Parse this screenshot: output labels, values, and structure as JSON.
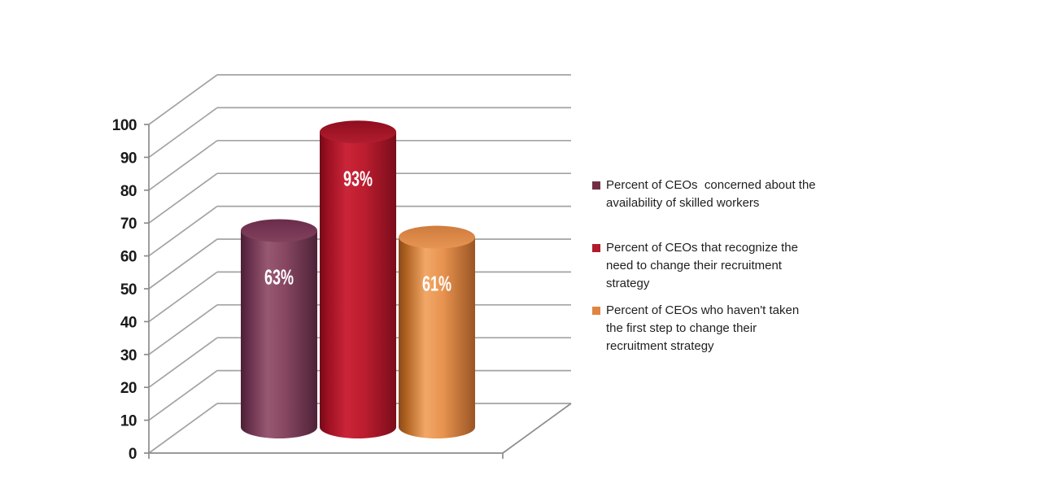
{
  "chart_data": {
    "type": "bar",
    "subtype": "3d-cylinder",
    "title": "",
    "xlabel": "",
    "ylabel": "",
    "categories": [
      ""
    ],
    "ylim": [
      0,
      100
    ],
    "ytick_step": 10,
    "yticks": [
      0,
      10,
      20,
      30,
      40,
      50,
      60,
      70,
      80,
      90,
      100
    ],
    "grid": true,
    "legend_position": "right",
    "colors": {
      "grid": "#A3A3A3",
      "axis": "#8C8C8C",
      "tick_label": "#1A1A1A",
      "data_label": "#FFFFFF",
      "background": "#FFFFFF"
    },
    "series": [
      {
        "name": "Percent of CEOs  concerned about the\navailability of skilled workers",
        "value": 63,
        "data_label": "63%",
        "colors": {
          "darkest": "#4A1F33",
          "dark": "#652E4A",
          "light": "#975871",
          "main": "#874761",
          "edge": "#4E2238",
          "top_dark": "#6A2C4B",
          "top_light": "#82415D",
          "legend": "#722F44"
        }
      },
      {
        "name": "Percent of CEOs that recognize the\nneed to change their recruitment\nstrategy",
        "value": 93,
        "data_label": "93%",
        "colors": {
          "darkest": "#720A18",
          "dark": "#9A1021",
          "light": "#CB2538",
          "main": "#BC1D2F",
          "edge": "#7A0D1B",
          "top_dark": "#8E0E1F",
          "top_light": "#B21D2F",
          "legend": "#B01C2B"
        }
      },
      {
        "name": "Percent of CEOs who haven't taken\nthe first step to change their\nrecruitment strategy",
        "value": 61,
        "data_label": "61%",
        "colors": {
          "darkest": "#8A4A1D",
          "dark": "#B06220",
          "light": "#F2A768",
          "main": "#E8934F",
          "edge": "#9A5523",
          "top_dark": "#CE7B3D",
          "top_light": "#E79554",
          "legend": "#E08540"
        }
      }
    ]
  }
}
